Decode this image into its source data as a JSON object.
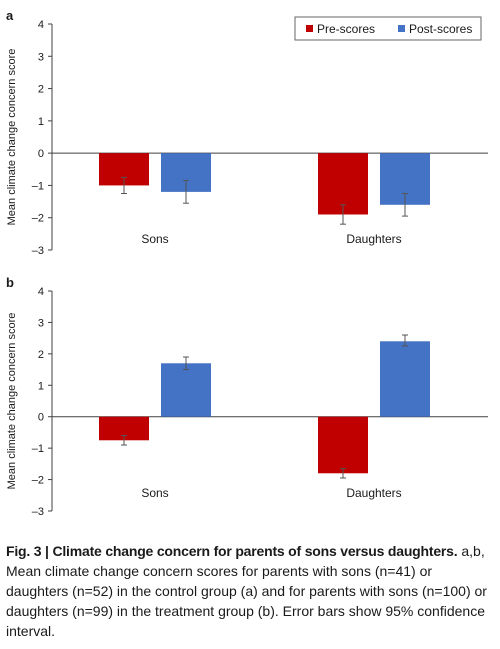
{
  "legend": {
    "items": [
      {
        "label": "Pre-scores",
        "color": "#c00000"
      },
      {
        "label": "Post-scores",
        "color": "#4472c4"
      }
    ],
    "placement": "top-right"
  },
  "chart_data": [
    {
      "panel": "a",
      "type": "bar",
      "ylabel": "Mean climate change concern score",
      "ylim": [
        -3,
        4
      ],
      "yticks": [
        "4",
        "3",
        "2",
        "1",
        "0",
        "–1",
        "–2",
        "–3"
      ],
      "categories": [
        "Sons",
        "Daughters"
      ],
      "series": [
        {
          "name": "Pre-scores",
          "values": [
            -1.0,
            -1.9
          ],
          "ci": [
            [
              -1.25,
              -0.75
            ],
            [
              -2.2,
              -1.6
            ]
          ]
        },
        {
          "name": "Post-scores",
          "values": [
            -1.2,
            -1.6
          ],
          "ci": [
            [
              -1.55,
              -0.85
            ],
            [
              -1.95,
              -1.25
            ]
          ]
        }
      ],
      "grid": false
    },
    {
      "panel": "b",
      "type": "bar",
      "ylabel": "Mean climate change concern score",
      "ylim": [
        -3,
        4
      ],
      "yticks": [
        "4",
        "3",
        "2",
        "1",
        "0",
        "–1",
        "–2",
        "–3"
      ],
      "categories": [
        "Sons",
        "Daughters"
      ],
      "series": [
        {
          "name": "Pre-scores",
          "values": [
            -0.75,
            -1.8
          ],
          "ci": [
            [
              -0.9,
              -0.6
            ],
            [
              -1.95,
              -1.65
            ]
          ]
        },
        {
          "name": "Post-scores",
          "values": [
            1.7,
            2.4
          ],
          "ci": [
            [
              1.5,
              1.9
            ],
            [
              2.25,
              2.6
            ]
          ]
        }
      ],
      "grid": false
    }
  ],
  "caption": {
    "title": "Fig. 3 | Climate change concern for parents of sons versus daughters.",
    "body": "a,b, Mean climate change concern scores for parents with sons (n=41) or daughters (n=52) in the control group (a) and for parents with sons (n=100) or daughters (n=99) in the treatment group (b). Error bars show 95% confidence interval."
  }
}
